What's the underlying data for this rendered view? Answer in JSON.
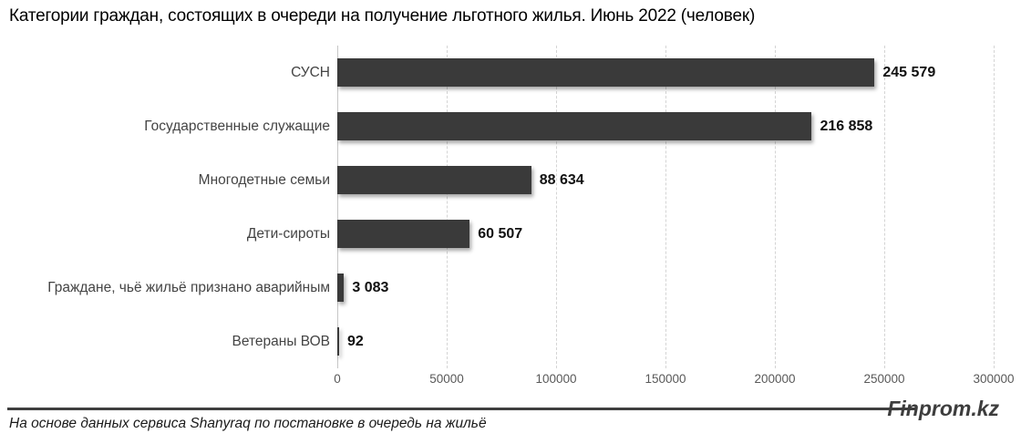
{
  "title": {
    "main": "Категории граждан, состоящих в очереди на получение льготного жилья. Июнь 2022",
    "suffix": " (человек)"
  },
  "chart_data": {
    "type": "bar",
    "orientation": "horizontal",
    "title": "Категории граждан, состоящих в очереди на получение льготного жилья. Июнь 2022 (человек)",
    "categories": [
      "СУСН",
      "Государственные служащие",
      "Многодетные семьи",
      "Дети-сироты",
      "Граждане, чьё жильё признано аварийным",
      "Ветераны ВОВ"
    ],
    "values": [
      245579,
      216858,
      88634,
      60507,
      3083,
      92
    ],
    "value_labels": [
      "245 579",
      "216 858",
      "88 634",
      "60 507",
      "3 083",
      "92"
    ],
    "xlabel": "",
    "ylabel": "",
    "xlim": [
      0,
      300000
    ],
    "x_ticks": [
      "0",
      "50000",
      "100000",
      "150000",
      "200000",
      "250000",
      "300000"
    ],
    "grid": "vertical dashed gridlines",
    "legend": "none",
    "bar_color": "#3a3a3a",
    "gridline_color": "#d4d4d4"
  },
  "footer": {
    "source_note": "На основе данных сервиса Shanyraq по постановке в очередь на жильё",
    "brand": "Finprom.kz"
  }
}
